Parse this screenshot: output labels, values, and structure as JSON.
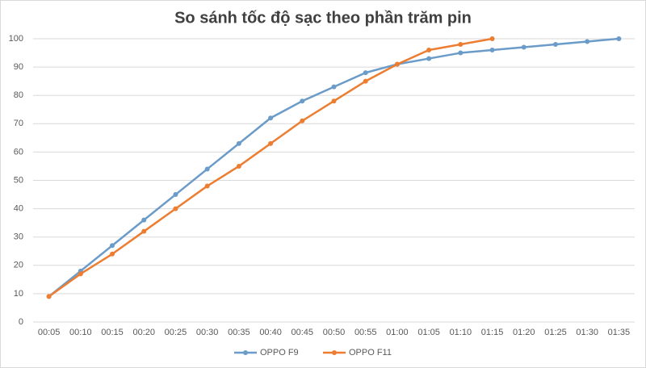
{
  "chart_data": {
    "type": "line",
    "title": "So sánh tốc độ sạc theo phần trăm pin",
    "categories": [
      "00:05",
      "00:10",
      "00:15",
      "00:20",
      "00:25",
      "00:30",
      "00:35",
      "00:40",
      "00:45",
      "00:50",
      "00:55",
      "01:00",
      "01:05",
      "01:10",
      "01:15",
      "01:20",
      "01:25",
      "01:30",
      "01:35"
    ],
    "series": [
      {
        "name": "OPPO F9",
        "color": "#6a9bc9",
        "values": [
          9,
          18,
          27,
          36,
          45,
          54,
          63,
          72,
          78,
          83,
          88,
          91,
          93,
          95,
          96,
          97,
          98,
          99,
          100
        ]
      },
      {
        "name": "OPPO F11",
        "color": "#ed7d31",
        "values": [
          9,
          17,
          24,
          32,
          40,
          48,
          55,
          63,
          71,
          78,
          85,
          91,
          96,
          98,
          100,
          null,
          null,
          null,
          null
        ]
      }
    ],
    "ylim": [
      0,
      100
    ],
    "yticks": [
      0,
      10,
      20,
      30,
      40,
      50,
      60,
      70,
      80,
      90,
      100
    ],
    "grid": true,
    "legend": "bottom"
  }
}
